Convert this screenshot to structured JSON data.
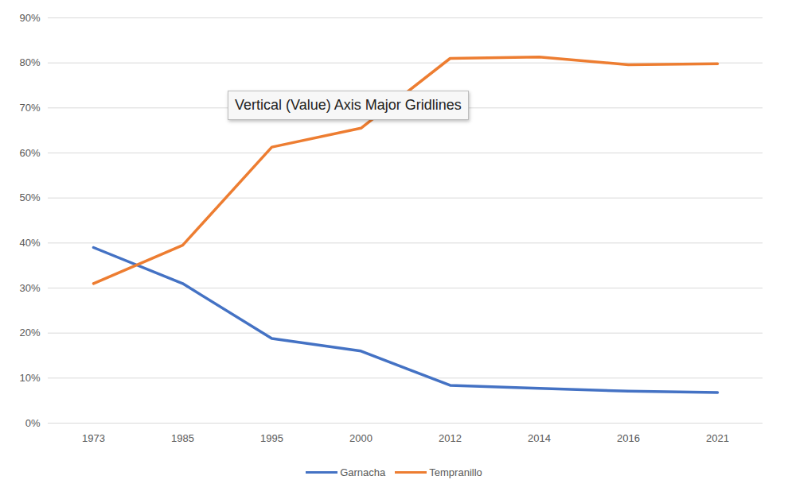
{
  "chart_data": {
    "type": "line",
    "categories": [
      "1973",
      "1985",
      "1995",
      "2000",
      "2012",
      "2014",
      "2016",
      "2021"
    ],
    "series": [
      {
        "name": "Garnacha",
        "color": "#4472c4",
        "values": [
          39,
          31,
          18.8,
          16,
          8.4,
          7.7,
          7.1,
          6.8
        ]
      },
      {
        "name": "Tempranillo",
        "color": "#ed7d31",
        "values": [
          31,
          39.5,
          61.3,
          65.5,
          81,
          81.3,
          79.6,
          79.8
        ]
      }
    ],
    "ylim": [
      0,
      90
    ],
    "yticks": [
      {
        "value": 0,
        "label": "0%"
      },
      {
        "value": 10,
        "label": "10%"
      },
      {
        "value": 20,
        "label": "20%"
      },
      {
        "value": 30,
        "label": "30%"
      },
      {
        "value": 40,
        "label": "40%"
      },
      {
        "value": 50,
        "label": "50%"
      },
      {
        "value": 60,
        "label": "60%"
      },
      {
        "value": 70,
        "label": "70%"
      },
      {
        "value": 80,
        "label": "80%"
      },
      {
        "value": 90,
        "label": "90%"
      }
    ],
    "grid": true,
    "legend": "bottom",
    "annotations": [
      "Vertical (Value) Axis Major Gridlines"
    ]
  }
}
